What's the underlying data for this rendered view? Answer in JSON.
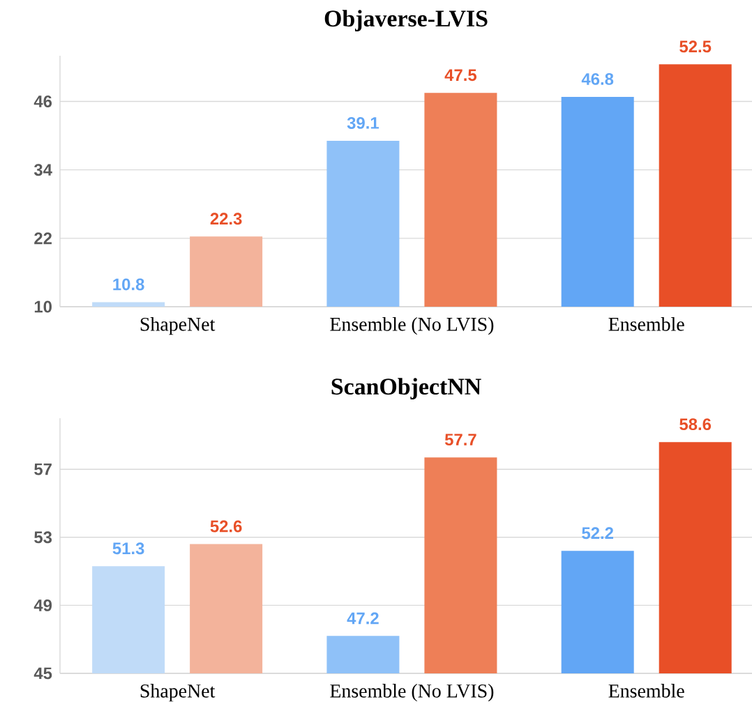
{
  "chart_data": [
    {
      "type": "bar",
      "title": "Objaverse-LVIS",
      "categories": [
        "ShapeNet",
        "Ensemble (No LVIS)",
        "Ensemble"
      ],
      "series": [
        {
          "values": [
            10.8,
            39.1,
            46.8
          ],
          "colors": [
            "#c0dbf8",
            "#8fc1f8",
            "#62a6f5"
          ]
        },
        {
          "values": [
            22.3,
            47.5,
            52.5
          ],
          "colors": [
            "#f3b39b",
            "#ee7f57",
            "#e84f27"
          ]
        }
      ],
      "yticks": [
        10,
        22,
        34,
        46
      ],
      "ylim": [
        10,
        54
      ],
      "grid": "y",
      "data_labels": true
    },
    {
      "type": "bar",
      "title": "ScanObjectNN",
      "categories": [
        "ShapeNet",
        "Ensemble (No LVIS)",
        "Ensemble"
      ],
      "series": [
        {
          "values": [
            51.3,
            47.2,
            52.2
          ],
          "colors": [
            "#c0dbf8",
            "#8fc1f8",
            "#62a6f5"
          ]
        },
        {
          "values": [
            52.6,
            57.7,
            58.6
          ],
          "colors": [
            "#f3b39b",
            "#ee7f57",
            "#e84f27"
          ]
        }
      ],
      "yticks": [
        45,
        49,
        53,
        57
      ],
      "ylim": [
        45,
        60
      ],
      "grid": "y",
      "data_labels": true
    }
  ]
}
